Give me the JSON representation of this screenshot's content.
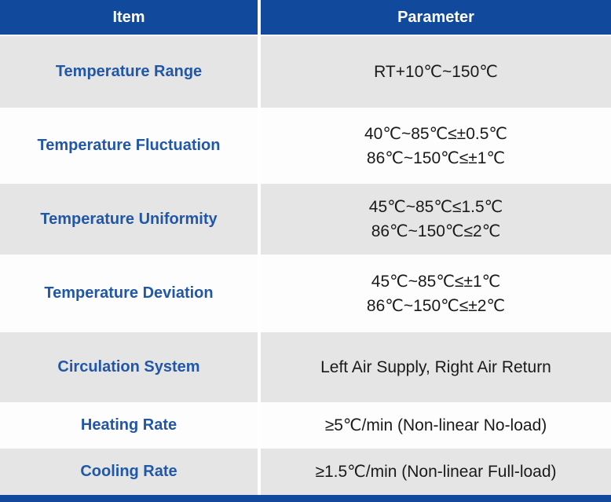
{
  "table": {
    "columns": [
      {
        "label": "Item"
      },
      {
        "label": "Parameter"
      }
    ],
    "rows": [
      {
        "item": "Temperature Range",
        "parameter": [
          "RT+10℃~150℃"
        ]
      },
      {
        "item": "Temperature Fluctuation",
        "parameter": [
          "40℃~85℃≤±0.5℃",
          "86℃~150℃≤±1℃"
        ]
      },
      {
        "item": "Temperature Uniformity",
        "parameter": [
          "45℃~85℃≤1.5℃",
          "86℃~150℃≤2℃"
        ]
      },
      {
        "item": "Temperature Deviation",
        "parameter": [
          "45℃~85℃≤±1℃",
          "86℃~150℃≤±2℃"
        ]
      },
      {
        "item": "Circulation System",
        "parameter": [
          "Left Air Supply, Right Air Return"
        ]
      },
      {
        "item": "Heating Rate",
        "parameter": [
          "≥5℃/min (Non-linear No-load)"
        ]
      },
      {
        "item": "Cooling Rate",
        "parameter": [
          "≥1.5℃/min (Non-linear Full-load)"
        ]
      }
    ],
    "colors": {
      "header_bg": "#11499d",
      "row_gray": "#e5e5e5",
      "row_white": "#fdfdfd",
      "item_text": "#2157a7",
      "value_text": "#1a1a1a",
      "bottom_bar": "#11499d"
    }
  }
}
